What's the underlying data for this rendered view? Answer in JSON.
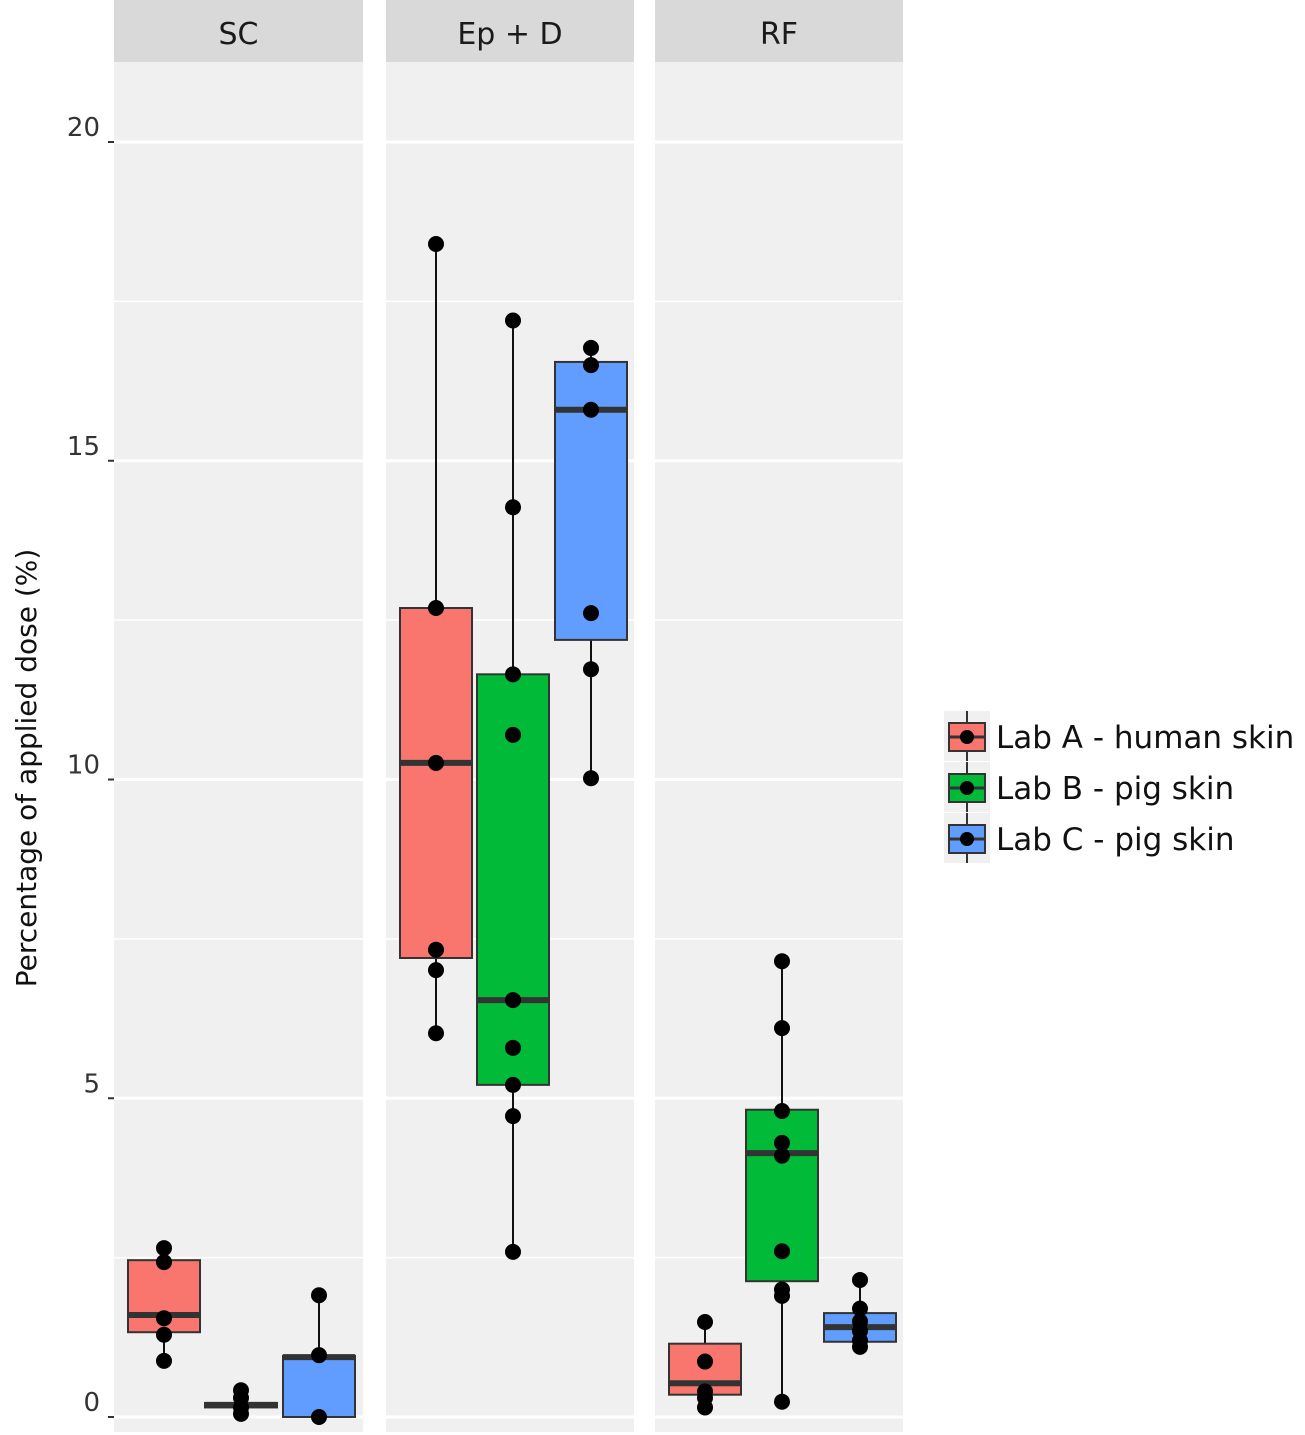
{
  "chart_data": {
    "type": "box",
    "ylabel": "Percentage of applied dose (%)",
    "xlabel": "",
    "ylim": [
      0,
      21.5
    ],
    "yticks": [
      0,
      5,
      10,
      15,
      20
    ],
    "grid": true,
    "legend_position": "right",
    "facets": [
      "SC",
      "Ep + D",
      "RF"
    ],
    "groups": [
      {
        "name": "Lab A - human skin",
        "color": "#F8766D"
      },
      {
        "name": "Lab B - pig skin",
        "color": "#00BA38"
      },
      {
        "name": "Lab C - pig skin",
        "color": "#619CFF"
      }
    ],
    "boxes": [
      {
        "facet": "SC",
        "group": 0,
        "min": 0.88,
        "q1": 1.33,
        "median": 1.6,
        "q3": 2.46,
        "max": 2.65,
        "points": [
          2.65,
          2.43,
          1.55,
          1.29,
          0.88
        ]
      },
      {
        "facet": "SC",
        "group": 1,
        "min": 0.05,
        "q1": 0.15,
        "median": 0.19,
        "q3": 0.22,
        "max": 0.42,
        "points": [
          0.42,
          0.3,
          0.15,
          0.05
        ]
      },
      {
        "facet": "SC",
        "group": 2,
        "min": 0.0,
        "q1": 0.0,
        "median": 0.94,
        "q3": 0.96,
        "max": 1.91,
        "points": [
          1.91,
          0.97,
          0.0
        ]
      },
      {
        "facet": "Ep + D",
        "group": 0,
        "min": 6.02,
        "q1": 7.2,
        "median": 10.26,
        "q3": 12.69,
        "max": 18.4,
        "points": [
          18.4,
          12.69,
          10.26,
          7.33,
          7.01,
          6.02
        ]
      },
      {
        "facet": "Ep + D",
        "group": 1,
        "min": 2.59,
        "q1": 5.21,
        "median": 6.54,
        "q3": 11.65,
        "max": 17.2,
        "points": [
          17.2,
          14.27,
          11.65,
          10.7,
          6.54,
          5.79,
          5.21,
          4.72,
          2.59
        ]
      },
      {
        "facet": "Ep + D",
        "group": 2,
        "min": 10.02,
        "q1": 12.19,
        "median": 15.8,
        "q3": 16.55,
        "max": 16.77,
        "points": [
          16.77,
          16.5,
          15.8,
          12.61,
          11.73,
          10.02
        ]
      },
      {
        "facet": "RF",
        "group": 0,
        "min": 0.11,
        "q1": 0.35,
        "median": 0.53,
        "q3": 1.15,
        "max": 1.49,
        "points": [
          1.49,
          0.87,
          0.4,
          0.3,
          0.15
        ]
      },
      {
        "facet": "RF",
        "group": 1,
        "min": 0.24,
        "q1": 2.13,
        "median": 4.14,
        "q3": 4.82,
        "max": 7.15,
        "points": [
          7.15,
          6.1,
          4.8,
          4.3,
          4.1,
          2.6,
          2.0,
          1.9,
          0.24
        ]
      },
      {
        "facet": "RF",
        "group": 2,
        "min": 1.08,
        "q1": 1.18,
        "median": 1.41,
        "q3": 1.63,
        "max": 2.15,
        "points": [
          2.15,
          1.7,
          1.5,
          1.35,
          1.2,
          1.1
        ]
      }
    ]
  }
}
